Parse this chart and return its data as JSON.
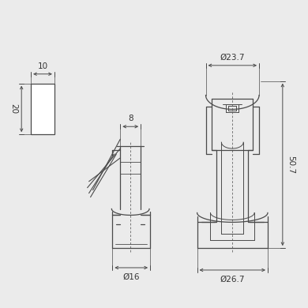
{
  "bg_color": "#ebebeb",
  "line_color": "#4a4a4a",
  "dim_color": "#4a4a4a",
  "text_color": "#333333",
  "font_size": 7.5,
  "dim_10_label": "10",
  "dim_20_label": "20",
  "dim_8_label": "8",
  "dim_16_label": "Ø16",
  "dim_237_label": "Ø23.7",
  "dim_507_label": "50.7",
  "dim_267_label": "Ø26.7"
}
